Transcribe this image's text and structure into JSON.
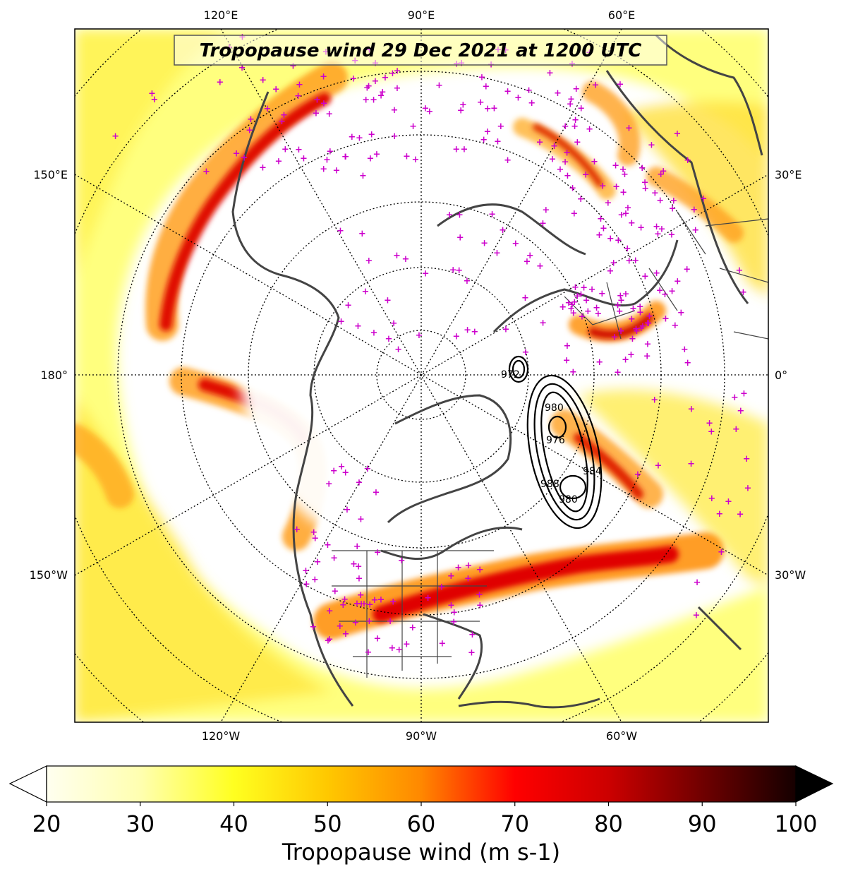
{
  "map": {
    "title": "Tropopause wind 29 Dec 2021 at 1200 UTC",
    "projection": "North Polar Stereographic",
    "longitude_labels": {
      "top": [
        "120°E",
        "90°E",
        "60°E"
      ],
      "bottom": [
        "120°W",
        "90°W",
        "60°W"
      ],
      "left": [
        "150°E",
        "180°",
        "150°W"
      ],
      "right": [
        "30°E",
        "0°",
        "30°W"
      ]
    },
    "gridlines": "dotted meridians and parallels",
    "colors": {
      "weak": "#ffffc0",
      "moderate": "#ffd700",
      "strong": "#ff6600",
      "jet_core": "#cc0000",
      "station_marker": "#cc00cc",
      "coastline": "#444444",
      "contour": "#000000"
    },
    "pressure_contours": {
      "unit": "hPa",
      "labels": [
        "980",
        "976",
        "984",
        "988",
        "980",
        "972"
      ]
    },
    "station_marker": "+"
  },
  "colorbar": {
    "label": "Tropopause wind (m s-1)",
    "ticks": [
      "20",
      "30",
      "40",
      "50",
      "60",
      "70",
      "80",
      "90",
      "100"
    ],
    "min": 20,
    "max": 100,
    "extend": "both",
    "colormap": "hot_r"
  }
}
